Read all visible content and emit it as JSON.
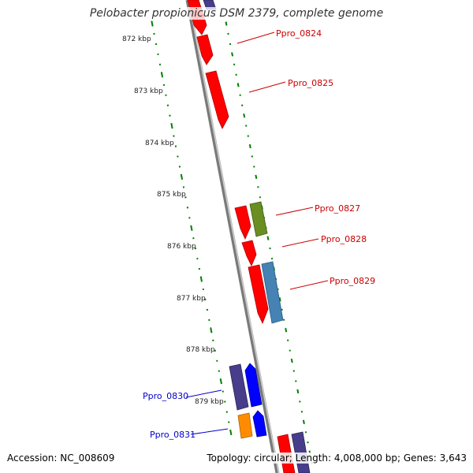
{
  "title": "Pelobacter propionicus DSM 2379, complete genome",
  "footer": {
    "accession": "Accession: NC_008609",
    "summary": "Topology: circular; Length: 4,008,000 bp; Genes: 3,643"
  },
  "colors": {
    "red_gene": "#ff0000",
    "olive_gene": "#6b8e23",
    "steel_gene": "#4682b4",
    "indigo_gene": "#483d8b",
    "blue_gene": "#0000ff",
    "orange_gene": "#ff8c00",
    "scale_ticks": "#008000",
    "label_red": "#cc0000",
    "label_blue": "#0000cc"
  },
  "scale": {
    "unit": "kbp",
    "ticks": [
      "872 kbp",
      "873 kbp",
      "874 kbp",
      "875 kbp",
      "876 kbp",
      "877 kbp",
      "878 kbp",
      "879 kbp"
    ]
  },
  "genes": [
    {
      "name": "Ppro_0824",
      "color_key": "red_gene",
      "label_color_key": "label_red"
    },
    {
      "name": "Ppro_0825",
      "color_key": "red_gene",
      "label_color_key": "label_red"
    },
    {
      "name": "Ppro_0827",
      "color_key": "red_gene",
      "label_color_key": "label_red"
    },
    {
      "name": "Ppro_0828",
      "color_key": "red_gene",
      "label_color_key": "label_red"
    },
    {
      "name": "Ppro_0829",
      "color_key": "red_gene",
      "label_color_key": "label_red"
    },
    {
      "name": "Ppro_0830",
      "color_key": "indigo_gene",
      "label_color_key": "label_blue"
    },
    {
      "name": "Ppro_0831",
      "color_key": "orange_gene",
      "label_color_key": "label_blue"
    }
  ]
}
